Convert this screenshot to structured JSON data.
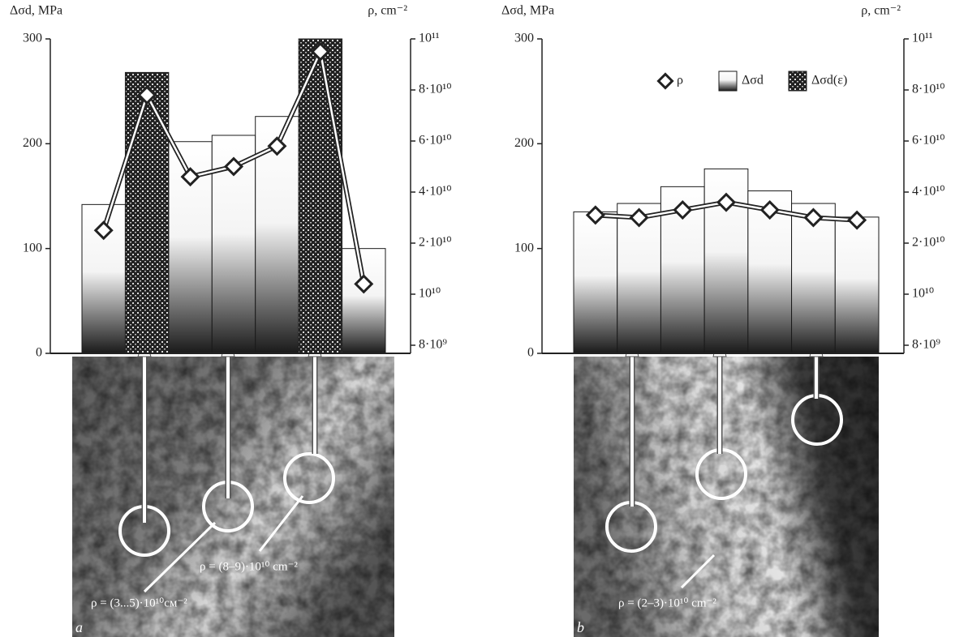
{
  "chart_data": [
    {
      "type": "bar-line",
      "panel_label": "a",
      "y_label": "Δσd, MPa",
      "y2_label": "ρ, cm⁻²",
      "categories": [
        null,
        null,
        null,
        null,
        null,
        null,
        null
      ],
      "ylim": [
        0,
        300
      ],
      "yticks": [
        0,
        100,
        200,
        300
      ],
      "y2lim": [
        8000000000,
        100000000000
      ],
      "y2ticks": [
        {
          "value": 8000000000,
          "label": "8·10⁹"
        },
        {
          "value": 10000000000,
          "label": "10¹⁰"
        },
        {
          "value": 20000000000,
          "label": "2·10¹⁰"
        },
        {
          "value": 40000000000,
          "label": "4·10¹⁰"
        },
        {
          "value": 60000000000,
          "label": "6·10¹⁰"
        },
        {
          "value": 80000000000,
          "label": "8·10¹⁰"
        },
        {
          "value": 100000000000,
          "label": "10¹¹"
        }
      ],
      "series": [
        {
          "style": "gradient",
          "color": "#1a1a1a",
          "values": [
            142,
            null,
            202,
            208,
            226,
            null,
            100
          ]
        },
        {
          "style": "dotted",
          "color": "#222222",
          "values": [
            null,
            268,
            null,
            null,
            null,
            300,
            null
          ]
        },
        {
          "style": "diamond-line",
          "axis": "y2",
          "color": "#222222",
          "values": [
            25000000000,
            78000000000,
            46000000000,
            50000000000,
            58000000000,
            95000000000,
            12000000000
          ]
        }
      ],
      "annotations": [
        "ρ = (3...5)·10¹⁰см⁻²",
        "ρ = (8–9)·10¹⁰ cm⁻²"
      ]
    },
    {
      "type": "bar-line",
      "panel_label": "b",
      "y_label": "Δσd, MPa",
      "y2_label": "ρ, cm⁻²",
      "categories": [
        null,
        null,
        null,
        null,
        null,
        null,
        null
      ],
      "ylim": [
        0,
        300
      ],
      "yticks": [
        0,
        100,
        200,
        300
      ],
      "y2lim": [
        8000000000,
        100000000000
      ],
      "y2ticks": [
        {
          "value": 8000000000,
          "label": "8·10⁹"
        },
        {
          "value": 10000000000,
          "label": "10¹⁰"
        },
        {
          "value": 20000000000,
          "label": "2·10¹⁰"
        },
        {
          "value": 40000000000,
          "label": "4·10¹⁰"
        },
        {
          "value": 60000000000,
          "label": "6·10¹⁰"
        },
        {
          "value": 80000000000,
          "label": "8·10¹⁰"
        },
        {
          "value": 100000000000,
          "label": "10¹¹"
        }
      ],
      "legend": "top-right",
      "series": [
        {
          "name": "ρ",
          "style": "diamond-line",
          "axis": "y2",
          "color": "#222222",
          "values": [
            31000000000,
            30000000000,
            33000000000,
            36000000000,
            33000000000,
            30000000000,
            29000000000
          ]
        },
        {
          "name": "Δσd",
          "style": "gradient",
          "color": "#1a1a1a",
          "values": [
            135,
            143,
            159,
            176,
            155,
            143,
            130
          ]
        },
        {
          "name": "Δσd(ε)",
          "style": "dotted",
          "color": "#222222",
          "values": [
            null,
            null,
            null,
            null,
            null,
            null,
            null
          ]
        }
      ],
      "annotations": [
        "ρ = (2–3)·10¹⁰ cm⁻²"
      ]
    }
  ]
}
